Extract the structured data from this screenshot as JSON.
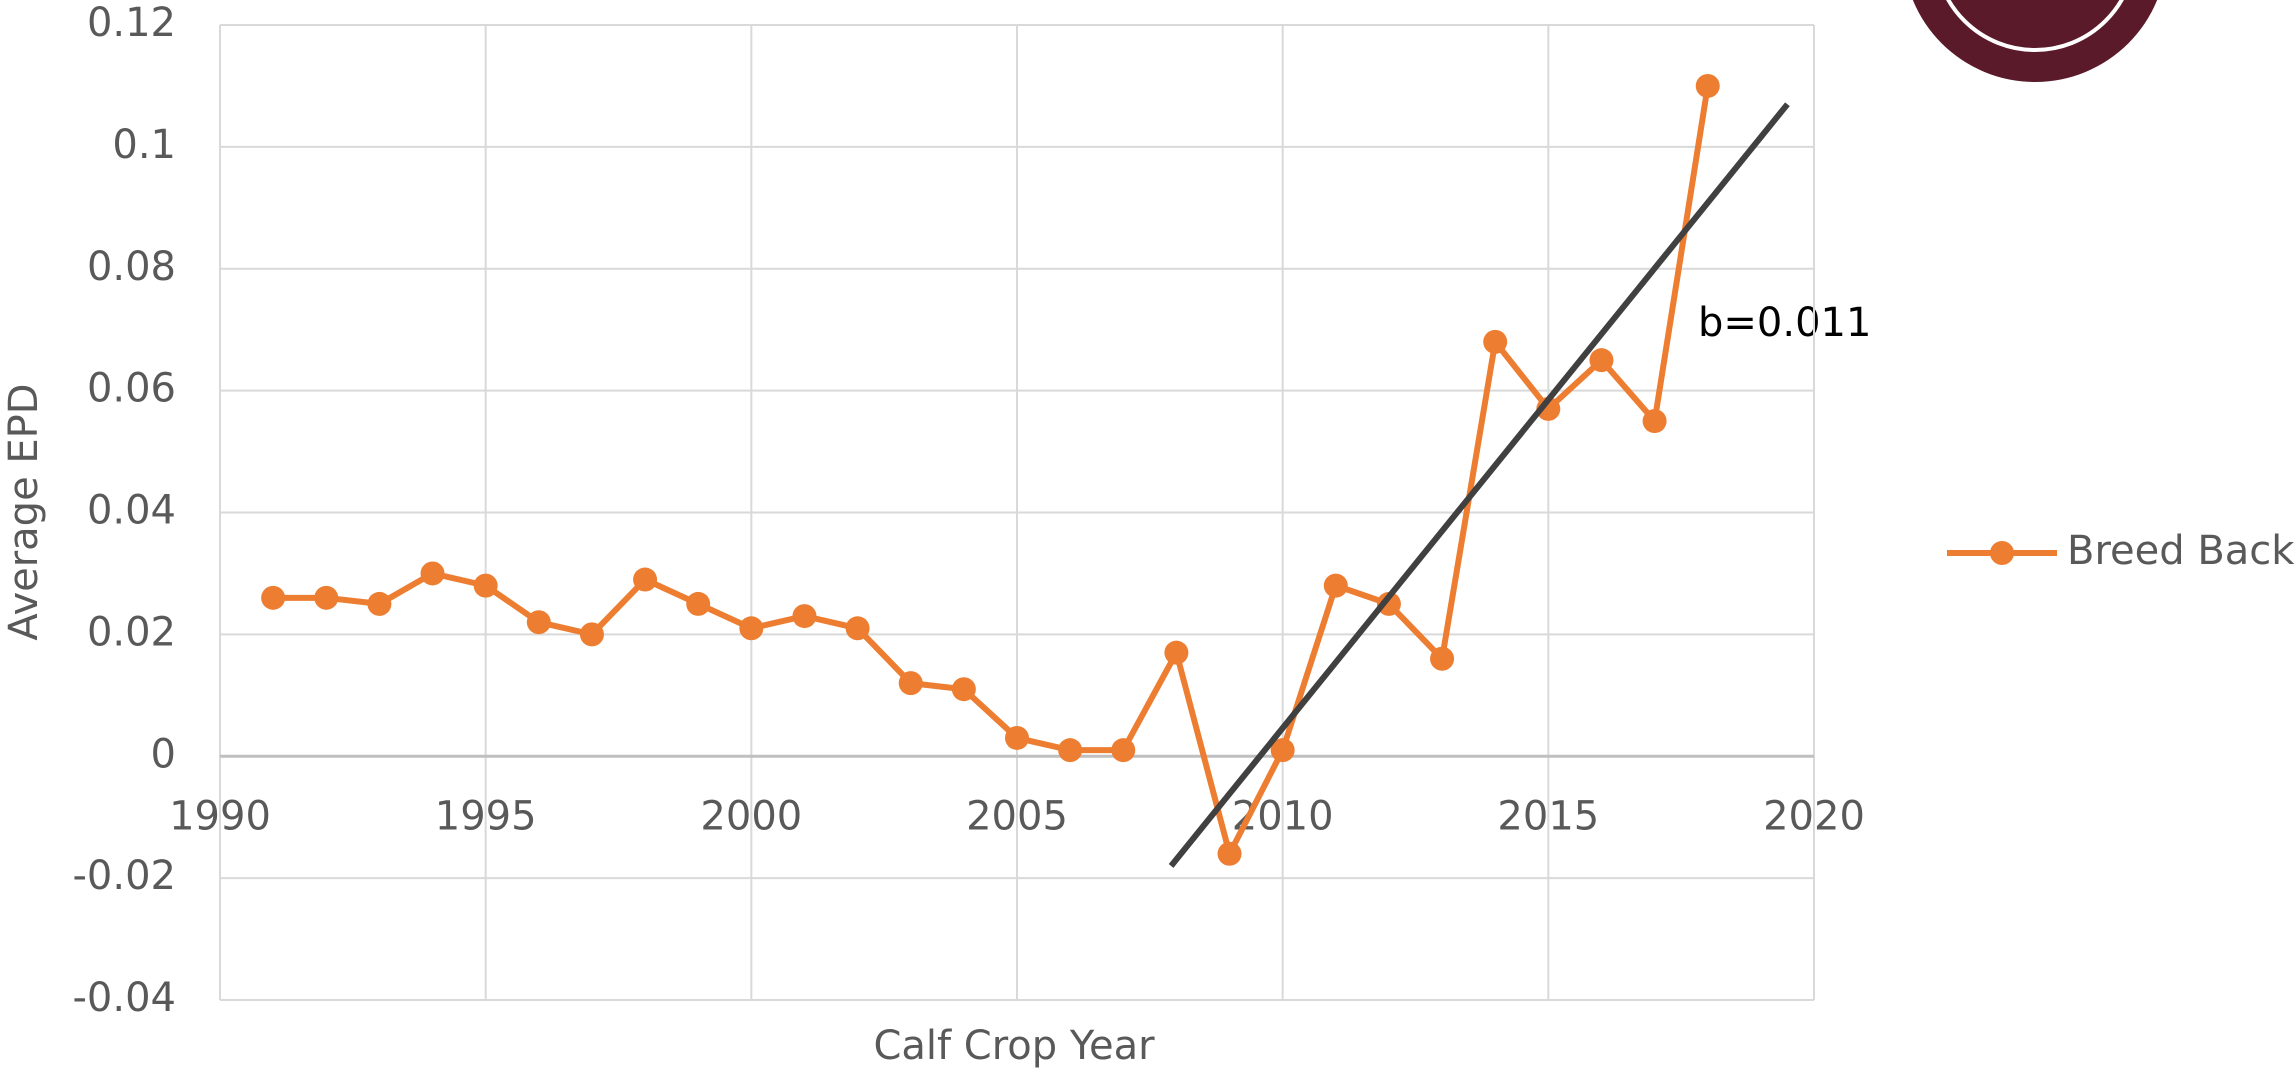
{
  "chart_data": {
    "type": "line",
    "x": [
      1991,
      1992,
      1993,
      1994,
      1995,
      1996,
      1997,
      1998,
      1999,
      2000,
      2001,
      2002,
      2003,
      2004,
      2005,
      2006,
      2007,
      2008,
      2009,
      2010,
      2011,
      2012,
      2013,
      2014,
      2015,
      2016,
      2017,
      2018
    ],
    "series": [
      {
        "name": "Breed Back",
        "color": "#ed7d31",
        "values": [
          0.026,
          0.026,
          0.025,
          0.03,
          0.028,
          0.022,
          0.02,
          0.029,
          0.025,
          0.021,
          0.023,
          0.021,
          0.012,
          0.011,
          0.003,
          0.001,
          0.001,
          0.017,
          -0.016,
          0.001,
          0.028,
          0.025,
          0.016,
          0.068,
          0.057,
          0.065,
          0.055,
          0.11
        ]
      }
    ],
    "trendline": {
      "x": [
        2007.9,
        2019.5
      ],
      "values": [
        -0.018,
        0.107
      ],
      "color": "#404040"
    },
    "annotation": "b=0.011",
    "xlabel": "Calf Crop Year",
    "ylabel": "Average EPD",
    "xlim": [
      1990,
      2020
    ],
    "xticks": [
      1990,
      1995,
      2000,
      2005,
      2010,
      2015,
      2020
    ],
    "ylim": [
      -0.04,
      0.12
    ],
    "yticks": [
      -0.04,
      -0.02,
      0,
      0.02,
      0.04,
      0.06,
      0.08,
      0.1,
      0.12
    ],
    "grid": true,
    "legend": "right"
  }
}
